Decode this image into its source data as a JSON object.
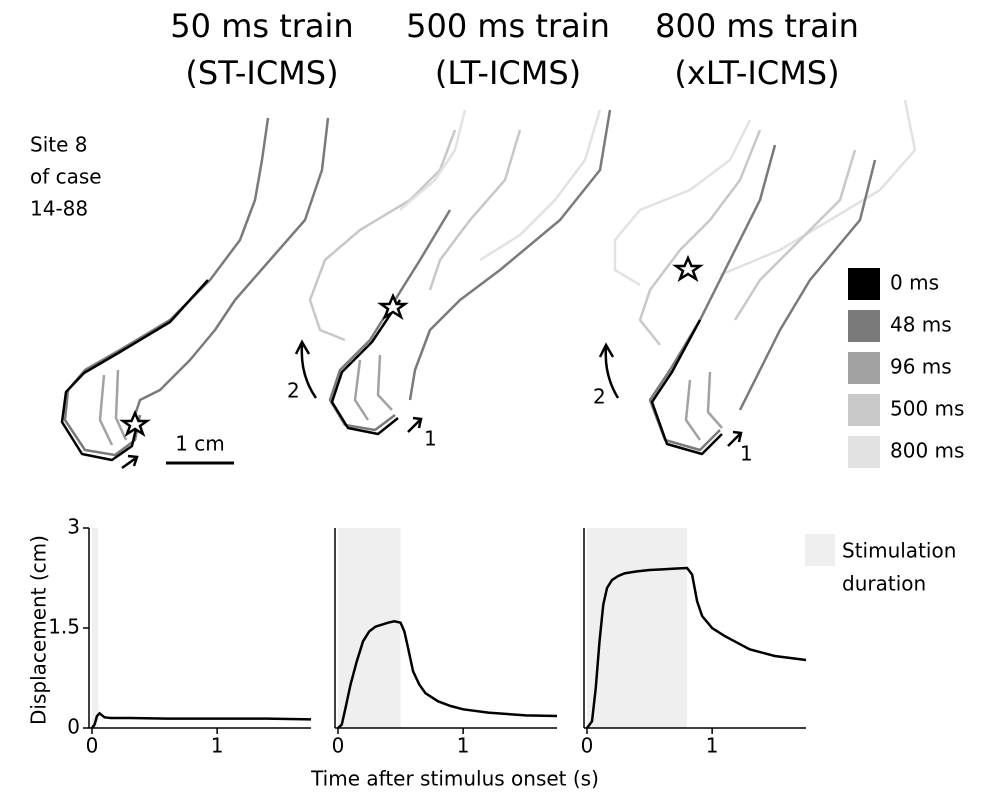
{
  "figure": {
    "site_label": [
      "Site 8",
      "of case",
      "14-88"
    ],
    "trace_legend": [
      {
        "label": "0 ms",
        "color": "#000000"
      },
      {
        "label": "48 ms",
        "color": "#7a7a7a"
      },
      {
        "label": "96 ms",
        "color": "#a2a2a2"
      },
      {
        "label": "500 ms",
        "color": "#c8c8c8"
      },
      {
        "label": "800 ms",
        "color": "#e2e2e2"
      }
    ],
    "scale_bar": "1 cm",
    "arrow_labels": [
      "1",
      "2"
    ],
    "ylabel": "Displacement (cm)",
    "xlabel": "Time after stimulus onset (s)",
    "shade_legend": [
      "Stimulation",
      "duration"
    ],
    "shade_color": "#efefef"
  },
  "chart_data": [
    {
      "type": "line",
      "title": "50 ms train",
      "subtitle": "(ST-ICMS)",
      "stim_window": [
        0,
        0.05
      ],
      "x": [
        0,
        0.02,
        0.04,
        0.06,
        0.08,
        0.1,
        0.15,
        0.3,
        0.6,
        1.0,
        1.4,
        1.75
      ],
      "series": [
        {
          "color": "#000000",
          "values": [
            0,
            0.05,
            0.18,
            0.22,
            0.19,
            0.16,
            0.15,
            0.15,
            0.14,
            0.14,
            0.14,
            0.13
          ]
        }
      ],
      "xlim": [
        0,
        1.75
      ],
      "ylim": [
        0,
        3
      ],
      "xticks": [
        0,
        1
      ],
      "yticks": [
        0,
        1.5,
        3
      ]
    },
    {
      "type": "line",
      "title": "500 ms train",
      "subtitle": "(LT-ICMS)",
      "stim_window": [
        0,
        0.5
      ],
      "x": [
        0,
        0.03,
        0.06,
        0.1,
        0.15,
        0.2,
        0.25,
        0.3,
        0.35,
        0.4,
        0.45,
        0.5,
        0.53,
        0.56,
        0.6,
        0.65,
        0.7,
        0.8,
        0.9,
        1.0,
        1.2,
        1.5,
        1.75
      ],
      "series": [
        {
          "color": "#000000",
          "values": [
            0,
            0.05,
            0.3,
            0.65,
            1.0,
            1.3,
            1.45,
            1.52,
            1.55,
            1.58,
            1.6,
            1.58,
            1.45,
            1.2,
            0.85,
            0.65,
            0.52,
            0.4,
            0.33,
            0.28,
            0.23,
            0.19,
            0.18
          ]
        }
      ],
      "xlim": [
        0,
        1.75
      ],
      "ylim": [
        0,
        3
      ],
      "xticks": [
        0,
        1
      ]
    },
    {
      "type": "line",
      "title": "800 ms train",
      "subtitle": "(xLT-ICMS)",
      "stim_window": [
        0,
        0.8
      ],
      "x": [
        0,
        0.04,
        0.07,
        0.1,
        0.13,
        0.16,
        0.2,
        0.25,
        0.3,
        0.4,
        0.5,
        0.6,
        0.7,
        0.8,
        0.84,
        0.88,
        0.92,
        1.0,
        1.1,
        1.2,
        1.3,
        1.5,
        1.75
      ],
      "series": [
        {
          "color": "#000000",
          "values": [
            0,
            0.1,
            0.6,
            1.3,
            1.85,
            2.1,
            2.22,
            2.28,
            2.32,
            2.35,
            2.37,
            2.38,
            2.39,
            2.4,
            2.3,
            1.9,
            1.68,
            1.5,
            1.38,
            1.28,
            1.18,
            1.08,
            1.02
          ]
        }
      ],
      "xlim": [
        0,
        1.75
      ],
      "ylim": [
        0,
        3
      ],
      "xticks": [
        0,
        1
      ]
    }
  ]
}
